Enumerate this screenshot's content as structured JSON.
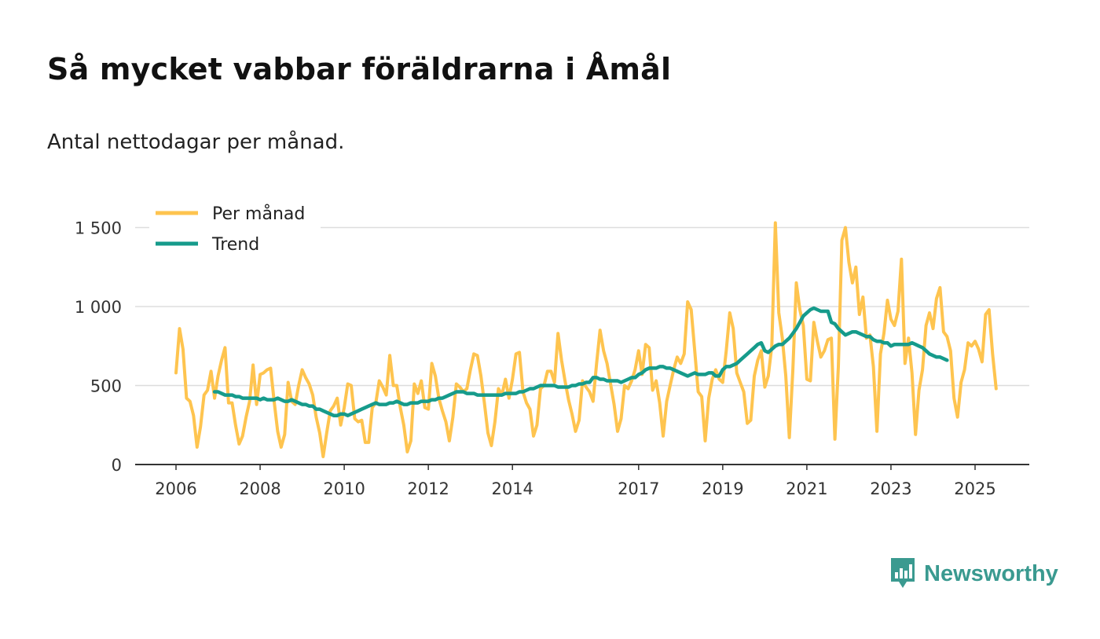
{
  "title": "Så mycket vabbar föräldrarna i Åmål",
  "subtitle": "Antal nettodagar per månad.",
  "brand": {
    "name": "Newsworthy",
    "icon": "newsworthy-logo-icon"
  },
  "colors": {
    "monthly": "#fec44f",
    "trend": "#169b8b",
    "grid": "#dddddd",
    "axis": "#333333",
    "brand": "#3a9a90"
  },
  "chart_data": {
    "type": "line",
    "title": "Så mycket vabbar föräldrarna i Åmål",
    "subtitle": "Antal nettodagar per månad.",
    "xlabel": "",
    "ylabel": "",
    "xlim": [
      2005.6,
      2026.3
    ],
    "ylim": [
      0,
      1600
    ],
    "grid": true,
    "legend_position": "top-left",
    "x_ticks": [
      2006,
      2008,
      2010,
      2012,
      2014,
      2017,
      2019,
      2021,
      2023,
      2025
    ],
    "x_tick_labels": [
      "2006",
      "2008",
      "2010",
      "2012",
      "2014",
      "2017",
      "2019",
      "2021",
      "2023",
      "2025"
    ],
    "y_ticks": [
      0,
      500,
      1000,
      1500
    ],
    "y_tick_labels": [
      "0",
      "500",
      "1 000",
      "1 500"
    ],
    "series": [
      {
        "name": "Per månad",
        "color": "#fec44f",
        "start": [
          2006,
          1
        ],
        "values": [
          580,
          860,
          730,
          420,
          400,
          310,
          110,
          240,
          440,
          470,
          590,
          420,
          560,
          660,
          740,
          390,
          390,
          250,
          130,
          180,
          300,
          400,
          630,
          380,
          570,
          580,
          600,
          610,
          400,
          210,
          110,
          190,
          520,
          400,
          380,
          500,
          600,
          550,
          510,
          440,
          300,
          200,
          50,
          200,
          340,
          370,
          420,
          250,
          360,
          510,
          500,
          290,
          270,
          280,
          140,
          140,
          360,
          390,
          530,
          490,
          440,
          690,
          500,
          500,
          360,
          250,
          80,
          150,
          510,
          450,
          530,
          360,
          350,
          640,
          560,
          420,
          340,
          270,
          150,
          300,
          510,
          490,
          460,
          480,
          600,
          700,
          690,
          560,
          390,
          200,
          120,
          270,
          480,
          440,
          540,
          420,
          540,
          700,
          710,
          460,
          390,
          350,
          180,
          250,
          480,
          500,
          590,
          590,
          520,
          830,
          660,
          530,
          410,
          320,
          210,
          280,
          530,
          490,
          460,
          400,
          640,
          850,
          720,
          640,
          510,
          380,
          210,
          290,
          500,
          480,
          530,
          600,
          720,
          570,
          760,
          740,
          470,
          530,
          390,
          180,
          400,
          500,
          600,
          680,
          640,
          700,
          1030,
          980,
          720,
          460,
          430,
          150,
          420,
          540,
          600,
          540,
          520,
          720,
          960,
          860,
          580,
          520,
          460,
          260,
          280,
          560,
          660,
          720,
          490,
          560,
          750,
          1530,
          960,
          800,
          560,
          170,
          600,
          1150,
          980,
          880,
          540,
          530,
          900,
          780,
          680,
          720,
          790,
          800,
          160,
          620,
          1420,
          1500,
          1280,
          1150,
          1250,
          950,
          1060,
          800,
          820,
          620,
          210,
          700,
          830,
          1040,
          920,
          880,
          970,
          1300,
          640,
          800,
          580,
          190,
          470,
          600,
          880,
          960,
          860,
          1050,
          1120,
          840,
          810,
          720,
          420,
          300,
          520,
          600,
          770,
          750,
          780,
          730,
          650,
          950,
          980,
          700,
          480
        ]
      },
      {
        "name": "Trend",
        "color": "#169b8b",
        "start": [
          2006,
          12
        ],
        "values": [
          460,
          460,
          450,
          440,
          440,
          440,
          430,
          430,
          420,
          420,
          420,
          420,
          420,
          410,
          420,
          410,
          410,
          410,
          420,
          410,
          400,
          400,
          410,
          400,
          390,
          380,
          380,
          370,
          370,
          350,
          350,
          340,
          330,
          320,
          310,
          310,
          320,
          320,
          310,
          320,
          330,
          340,
          350,
          360,
          370,
          380,
          390,
          380,
          380,
          380,
          390,
          390,
          400,
          390,
          380,
          380,
          390,
          390,
          390,
          400,
          400,
          400,
          410,
          410,
          420,
          420,
          430,
          440,
          450,
          460,
          460,
          460,
          450,
          450,
          450,
          440,
          440,
          440,
          440,
          440,
          440,
          440,
          440,
          450,
          450,
          450,
          450,
          460,
          460,
          470,
          480,
          480,
          490,
          500,
          500,
          500,
          500,
          500,
          490,
          490,
          490,
          490,
          500,
          500,
          510,
          510,
          520,
          520,
          550,
          550,
          540,
          540,
          530,
          530,
          530,
          530,
          520,
          530,
          540,
          550,
          550,
          570,
          580,
          600,
          610,
          610,
          610,
          620,
          620,
          610,
          610,
          600,
          590,
          580,
          570,
          560,
          570,
          580,
          570,
          570,
          570,
          580,
          580,
          560,
          560,
          600,
          620,
          620,
          630,
          640,
          660,
          680,
          700,
          720,
          740,
          760,
          770,
          720,
          710,
          730,
          750,
          760,
          760,
          780,
          800,
          830,
          860,
          900,
          940,
          960,
          980,
          990,
          980,
          970,
          970,
          970,
          900,
          890,
          860,
          840,
          820,
          830,
          840,
          840,
          830,
          820,
          810,
          810,
          790,
          780,
          780,
          770,
          770,
          750,
          760,
          760,
          760,
          760,
          760,
          770,
          760,
          750,
          740,
          720,
          700,
          690,
          680,
          680,
          670,
          660
        ]
      }
    ]
  }
}
